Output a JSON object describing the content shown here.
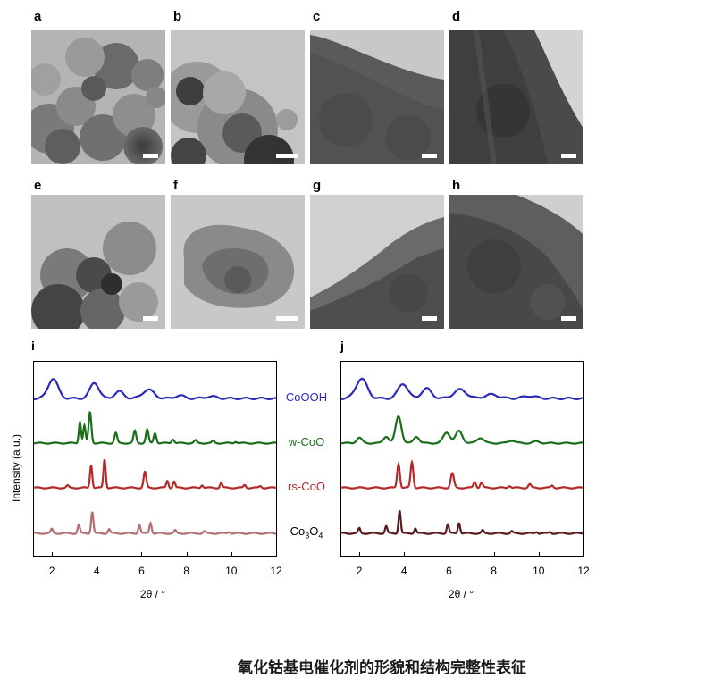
{
  "panels": {
    "a": "a",
    "b": "b",
    "c": "c",
    "d": "d",
    "e": "e",
    "f": "f",
    "g": "g",
    "h": "h",
    "i": "i",
    "j": "j"
  },
  "caption": "氧化钴基电催化剂的形貌和结构完整性表征",
  "chart_data": [
    {
      "type": "line",
      "panel": "i",
      "title": "",
      "xlabel": "2θ / °",
      "ylabel": "Intensity (a.u.)",
      "xlim": [
        1.2,
        12
      ],
      "xticks": [
        2,
        4,
        6,
        8,
        10,
        12
      ],
      "grid": false,
      "legend": "inline-right",
      "series": [
        {
          "name": "CoOOH",
          "color": "#2a2ab8",
          "peaks": [
            [
              2.05,
              1.0,
              0.22
            ],
            [
              3.9,
              0.8,
              0.2
            ],
            [
              5.0,
              0.35,
              0.2
            ],
            [
              6.3,
              0.45,
              0.25
            ],
            [
              7.7,
              0.15,
              0.2
            ],
            [
              9.1,
              0.1,
              0.25
            ]
          ]
        },
        {
          "name": "w-CoO",
          "color": "#1a6e1a",
          "peaks": [
            [
              3.25,
              1.6,
              0.05
            ],
            [
              3.45,
              1.3,
              0.05
            ],
            [
              3.7,
              2.3,
              0.06
            ],
            [
              4.85,
              0.75,
              0.06
            ],
            [
              5.7,
              0.9,
              0.06
            ],
            [
              6.25,
              1.0,
              0.06
            ],
            [
              6.6,
              0.75,
              0.06
            ],
            [
              7.4,
              0.3,
              0.06
            ],
            [
              8.4,
              0.2,
              0.06
            ],
            [
              9.2,
              0.15,
              0.06
            ],
            [
              10.2,
              0.12,
              0.06
            ]
          ]
        },
        {
          "name": "rs-CoO",
          "color": "#b22a2a",
          "peaks": [
            [
              2.7,
              0.15,
              0.05
            ],
            [
              3.75,
              1.6,
              0.05
            ],
            [
              4.35,
              2.0,
              0.05
            ],
            [
              6.15,
              1.1,
              0.06
            ],
            [
              7.15,
              0.5,
              0.05
            ],
            [
              7.45,
              0.45,
              0.05
            ],
            [
              8.7,
              0.2,
              0.05
            ],
            [
              9.55,
              0.35,
              0.05
            ],
            [
              10.6,
              0.2,
              0.05
            ],
            [
              11.3,
              0.12,
              0.05
            ]
          ]
        },
        {
          "name": "Co3O4",
          "color": "#b07070",
          "peaks": [
            [
              2.0,
              0.3,
              0.05
            ],
            [
              3.2,
              0.6,
              0.05
            ],
            [
              3.8,
              1.5,
              0.05
            ],
            [
              4.55,
              0.3,
              0.05
            ],
            [
              5.9,
              0.6,
              0.05
            ],
            [
              6.4,
              0.75,
              0.05
            ],
            [
              7.5,
              0.2,
              0.05
            ],
            [
              8.8,
              0.15,
              0.05
            ],
            [
              9.9,
              0.12,
              0.05
            ]
          ]
        }
      ]
    },
    {
      "type": "line",
      "panel": "j",
      "title": "",
      "xlabel": "2θ / °",
      "ylabel": "",
      "xlim": [
        1.2,
        12
      ],
      "xticks": [
        2,
        4,
        6,
        8,
        10,
        12
      ],
      "grid": false,
      "legend": "none",
      "series": [
        {
          "name": "",
          "color": "#2a2ab8",
          "peaks": [
            [
              2.1,
              1.0,
              0.25
            ],
            [
              3.95,
              0.75,
              0.22
            ],
            [
              5.0,
              0.5,
              0.22
            ],
            [
              6.5,
              0.45,
              0.28
            ],
            [
              7.9,
              0.2,
              0.3
            ],
            [
              9.6,
              0.12,
              0.3
            ]
          ]
        },
        {
          "name": "",
          "color": "#1a6e1a",
          "peaks": [
            [
              2.0,
              0.4,
              0.12
            ],
            [
              3.2,
              0.5,
              0.12
            ],
            [
              3.75,
              2.0,
              0.13
            ],
            [
              4.55,
              0.5,
              0.12
            ],
            [
              5.9,
              0.8,
              0.15
            ],
            [
              6.45,
              0.9,
              0.15
            ],
            [
              7.4,
              0.4,
              0.15
            ],
            [
              8.8,
              0.2,
              0.15
            ],
            [
              9.9,
              0.12,
              0.15
            ]
          ]
        },
        {
          "name": "",
          "color": "#b22a2a",
          "peaks": [
            [
              3.75,
              1.7,
              0.06
            ],
            [
              4.35,
              1.8,
              0.06
            ],
            [
              6.15,
              1.0,
              0.07
            ],
            [
              7.15,
              0.4,
              0.06
            ],
            [
              7.45,
              0.35,
              0.06
            ],
            [
              8.7,
              0.15,
              0.06
            ],
            [
              9.6,
              0.25,
              0.06
            ],
            [
              10.6,
              0.15,
              0.06
            ]
          ]
        },
        {
          "name": "",
          "color": "#5a1a1a",
          "peaks": [
            [
              2.0,
              0.35,
              0.05
            ],
            [
              3.2,
              0.5,
              0.05
            ],
            [
              3.8,
              1.6,
              0.05
            ],
            [
              4.5,
              0.35,
              0.05
            ],
            [
              5.95,
              0.65,
              0.05
            ],
            [
              6.45,
              0.75,
              0.05
            ],
            [
              7.5,
              0.2,
              0.05
            ],
            [
              8.8,
              0.15,
              0.05
            ],
            [
              9.9,
              0.12,
              0.05
            ],
            [
              10.5,
              0.1,
              0.05
            ]
          ]
        }
      ]
    }
  ]
}
